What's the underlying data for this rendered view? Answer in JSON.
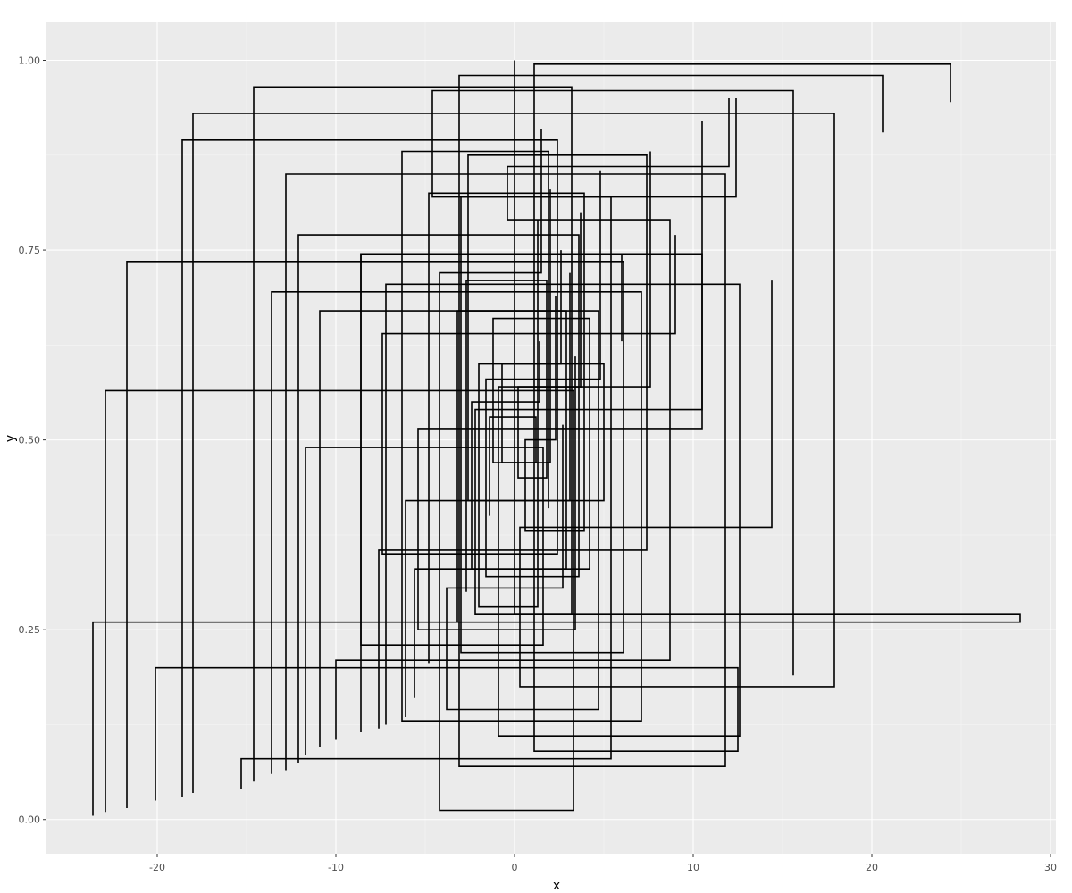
{
  "chart_data": {
    "type": "line",
    "subtype": "step",
    "title": "",
    "xlabel": "x",
    "ylabel": "y",
    "xlim": [
      -26.2,
      30.3
    ],
    "ylim": [
      -0.045,
      1.05
    ],
    "x_ticks": [
      -20,
      -10,
      0,
      10,
      20,
      30
    ],
    "x_tick_labels": [
      "-20",
      "-10",
      "0",
      "10",
      "20",
      "30"
    ],
    "y_ticks": [
      0.0,
      0.25,
      0.5,
      0.75,
      1.0
    ],
    "y_tick_labels": [
      "0.00",
      "0.25",
      "0.50",
      "0.75",
      "1.00"
    ],
    "grid": true,
    "legend": "none",
    "colors": {
      "panel": "#ebebeb",
      "grid_major": "#ffffff",
      "grid_minor": "#f5f5f5",
      "line": "#000000",
      "tick_label": "#4d4d4d"
    },
    "series": [
      {
        "x": [
          -23.6,
          -23.6,
          28.3,
          28.3,
          0.0,
          0.0
        ],
        "y": [
          0.005,
          0.26,
          0.26,
          0.27,
          0.27,
          1.0
        ]
      },
      {
        "x": [
          -22.9,
          -22.9,
          3.3,
          3.3,
          -4.2,
          -4.2,
          1.5,
          1.5
        ],
        "y": [
          0.01,
          0.565,
          0.565,
          0.012,
          0.012,
          0.72,
          0.72,
          0.91
        ]
      },
      {
        "x": [
          -21.7,
          -21.7,
          6.1,
          6.1,
          -3.0,
          -3.0,
          12.4,
          12.4
        ],
        "y": [
          0.015,
          0.735,
          0.735,
          0.22,
          0.22,
          0.82,
          0.82,
          0.95
        ]
      },
      {
        "x": [
          -20.1,
          -20.1,
          12.5,
          12.5,
          1.1,
          1.1,
          24.4,
          24.4
        ],
        "y": [
          0.025,
          0.2,
          0.2,
          0.09,
          0.09,
          0.995,
          0.995,
          0.945
        ]
      },
      {
        "x": [
          -18.6,
          -18.6,
          2.4,
          2.4,
          -7.4,
          -7.4,
          9.0,
          9.0
        ],
        "y": [
          0.03,
          0.895,
          0.895,
          0.35,
          0.35,
          0.64,
          0.64,
          0.77
        ]
      },
      {
        "x": [
          -18.0,
          -18.0,
          17.9,
          17.9,
          0.3,
          0.3,
          14.4,
          14.4
        ],
        "y": [
          0.035,
          0.93,
          0.93,
          0.175,
          0.175,
          0.385,
          0.385,
          0.71
        ]
      },
      {
        "x": [
          -15.3,
          -15.3,
          5.4,
          5.4,
          -4.6,
          -4.6,
          15.6,
          15.6
        ],
        "y": [
          0.04,
          0.08,
          0.08,
          0.82,
          0.82,
          0.96,
          0.96,
          0.19
        ]
      },
      {
        "x": [
          -14.6,
          -14.6,
          3.2,
          3.2,
          -2.2,
          -2.2,
          10.5,
          10.5
        ],
        "y": [
          0.05,
          0.965,
          0.965,
          0.27,
          0.27,
          0.54,
          0.54,
          0.92
        ]
      },
      {
        "x": [
          -13.6,
          -13.6,
          7.1,
          7.1,
          -6.3,
          -6.3,
          1.9,
          1.9
        ],
        "y": [
          0.06,
          0.695,
          0.695,
          0.13,
          0.13,
          0.88,
          0.88,
          0.41
        ]
      },
      {
        "x": [
          -12.8,
          -12.8,
          11.8,
          11.8,
          -3.1,
          -3.1,
          20.6,
          20.6
        ],
        "y": [
          0.065,
          0.85,
          0.85,
          0.07,
          0.07,
          0.98,
          0.98,
          0.905
        ]
      },
      {
        "x": [
          -12.1,
          -12.1,
          3.6,
          3.6,
          -1.6,
          -1.6,
          4.8,
          4.8
        ],
        "y": [
          0.075,
          0.77,
          0.77,
          0.32,
          0.32,
          0.58,
          0.58,
          0.855
        ]
      },
      {
        "x": [
          -11.7,
          -11.7,
          1.6,
          1.6,
          -8.6,
          -8.6,
          6.0,
          6.0
        ],
        "y": [
          0.085,
          0.49,
          0.49,
          0.23,
          0.23,
          0.745,
          0.745,
          0.63
        ]
      },
      {
        "x": [
          -10.9,
          -10.9,
          4.7,
          4.7,
          -3.8,
          -3.8,
          2.7,
          2.7
        ],
        "y": [
          0.095,
          0.67,
          0.67,
          0.145,
          0.145,
          0.305,
          0.305,
          0.52
        ]
      },
      {
        "x": [
          -10.0,
          -10.0,
          8.7,
          8.7,
          -0.4,
          -0.4,
          12.0,
          12.0
        ],
        "y": [
          0.105,
          0.21,
          0.21,
          0.79,
          0.79,
          0.86,
          0.86,
          0.95
        ]
      },
      {
        "x": [
          -8.6,
          -8.6,
          10.5,
          10.5,
          -5.4,
          -5.4,
          3.4,
          3.4
        ],
        "y": [
          0.115,
          0.745,
          0.745,
          0.515,
          0.515,
          0.25,
          0.25,
          0.61
        ]
      },
      {
        "x": [
          -7.6,
          -7.6,
          7.4,
          7.4,
          -2.6,
          -2.6,
          3.1,
          3.1
        ],
        "y": [
          0.12,
          0.355,
          0.355,
          0.875,
          0.875,
          0.42,
          0.42,
          0.72
        ]
      },
      {
        "x": [
          -7.2,
          -7.2,
          12.6,
          12.6,
          -0.9,
          -0.9,
          7.6,
          7.6
        ],
        "y": [
          0.125,
          0.705,
          0.705,
          0.11,
          0.11,
          0.57,
          0.57,
          0.88
        ]
      },
      {
        "x": [
          -6.1,
          -6.1,
          5.0,
          5.0,
          -2.0,
          -2.0,
          1.3,
          1.3
        ],
        "y": [
          0.135,
          0.42,
          0.42,
          0.6,
          0.6,
          0.28,
          0.28,
          0.79
        ]
      },
      {
        "x": [
          -5.6,
          -5.6,
          4.2,
          4.2,
          -1.2,
          -1.2,
          2.0,
          2.0
        ],
        "y": [
          0.16,
          0.33,
          0.33,
          0.66,
          0.66,
          0.47,
          0.47,
          0.83
        ]
      },
      {
        "x": [
          -4.8,
          -4.8,
          3.9,
          3.9,
          0.6,
          0.6,
          2.3,
          2.3
        ],
        "y": [
          0.205,
          0.825,
          0.825,
          0.38,
          0.38,
          0.5,
          0.5,
          0.69
        ]
      },
      {
        "x": [
          -3.2,
          -3.2,
          2.9,
          2.9,
          -2.4,
          -2.4,
          1.4,
          1.4
        ],
        "y": [
          0.26,
          0.67,
          0.67,
          0.33,
          0.33,
          0.55,
          0.55,
          0.63
        ]
      },
      {
        "x": [
          -2.7,
          -2.7,
          1.8,
          1.8,
          0.2,
          0.2,
          3.7,
          3.7
        ],
        "y": [
          0.3,
          0.71,
          0.71,
          0.45,
          0.45,
          0.57,
          0.57,
          0.8
        ]
      },
      {
        "x": [
          -1.4,
          -1.4,
          1.2,
          1.2,
          -0.7,
          -0.7,
          2.6,
          2.6
        ],
        "y": [
          0.4,
          0.53,
          0.53,
          0.47,
          0.47,
          0.6,
          0.6,
          0.75
        ]
      }
    ]
  }
}
